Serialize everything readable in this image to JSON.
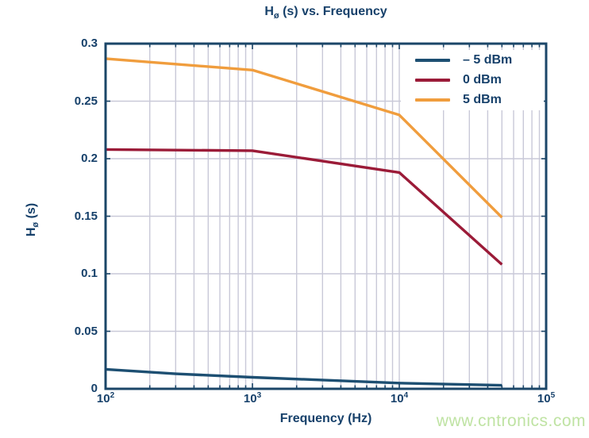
{
  "title": {
    "prefix": "H",
    "subscript": "ø",
    "suffix": " (s) vs. Frequency"
  },
  "axes": {
    "x_label": "Frequency (Hz)",
    "y_label": {
      "prefix": "H",
      "subscript": "ø",
      "suffix": " (s)"
    },
    "x_tick_labels": [
      {
        "base": "10",
        "exp": "2"
      },
      {
        "base": "10",
        "exp": "3"
      },
      {
        "base": "10",
        "exp": "4"
      },
      {
        "base": "10",
        "exp": "5"
      }
    ],
    "y_tick_labels": [
      "0",
      "0.05",
      "0.1",
      "0.15",
      "0.2",
      "0.25",
      "0.3"
    ]
  },
  "legend": {
    "items": [
      {
        "label": "– 5 dBm",
        "color": "#1d4f72"
      },
      {
        "label": "0 dBm",
        "color": "#9b1b38"
      },
      {
        "label": "5 dBm",
        "color": "#f09d3d"
      }
    ]
  },
  "watermark": {
    "text": "www.cntronics.com",
    "color": "#bfe3a3"
  },
  "colors": {
    "text": "#16406a",
    "axis": "#1b4668",
    "grid": "#c9c9d8",
    "background": "#ffffff"
  },
  "chart_data": {
    "type": "line",
    "title": "Hø (s) vs. Frequency",
    "xlabel": "Frequency (Hz)",
    "ylabel": "Hø (s)",
    "x_scale": "log",
    "xlim": [
      100,
      100000
    ],
    "ylim": [
      0,
      0.3
    ],
    "x_ticks": [
      100,
      1000,
      10000,
      100000
    ],
    "y_ticks": [
      0,
      0.05,
      0.1,
      0.15,
      0.2,
      0.25,
      0.3
    ],
    "grid": true,
    "legend_position": "upper right",
    "series": [
      {
        "name": "– 5 dBm",
        "color": "#1d4f72",
        "x": [
          100,
          300,
          1000,
          10000,
          50000
        ],
        "y": [
          0.017,
          0.013,
          0.01,
          0.005,
          0.003
        ]
      },
      {
        "name": "0 dBm",
        "color": "#9b1b38",
        "x": [
          100,
          1000,
          10000,
          50000
        ],
        "y": [
          0.208,
          0.207,
          0.188,
          0.108
        ]
      },
      {
        "name": "5 dBm",
        "color": "#f09d3d",
        "x": [
          100,
          1000,
          10000,
          50000
        ],
        "y": [
          0.287,
          0.277,
          0.238,
          0.149
        ]
      }
    ]
  }
}
